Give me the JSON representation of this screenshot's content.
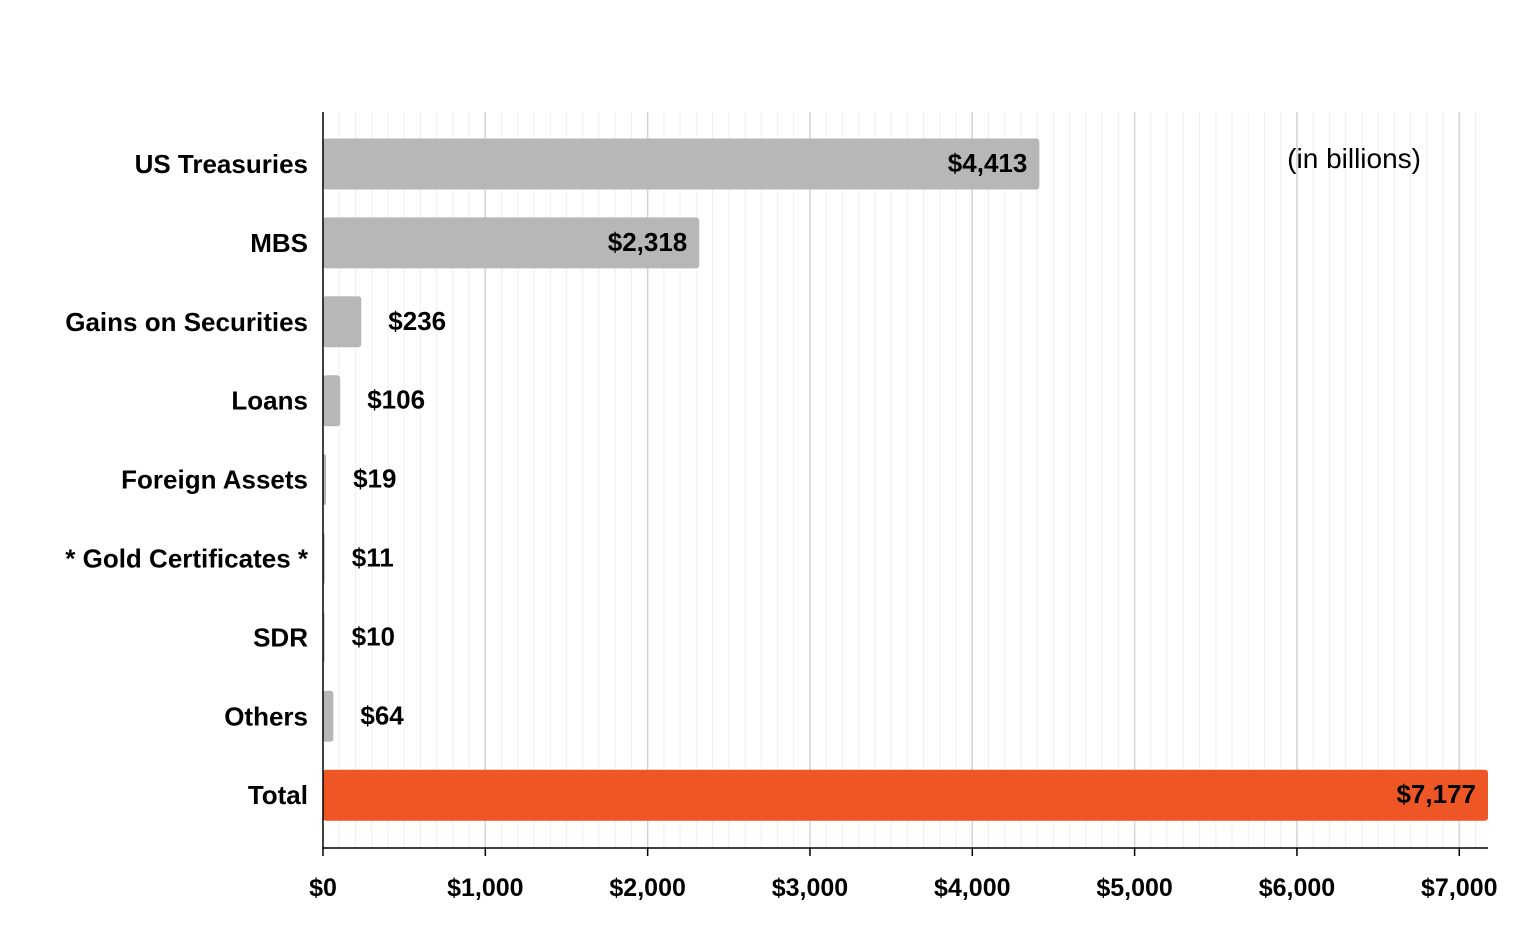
{
  "chart_data": {
    "type": "bar",
    "orientation": "horizontal",
    "title": "",
    "xlabel": "",
    "ylabel": "",
    "annotation": "(in billions)",
    "categories": [
      "US Treasuries",
      "MBS",
      "Gains on Securities",
      "Loans",
      "Foreign Assets",
      "* Gold Certificates *",
      "SDR",
      "Others",
      "Total"
    ],
    "values": [
      4413,
      2318,
      236,
      106,
      19,
      11,
      10,
      64,
      7177
    ],
    "value_labels": [
      "$4,413",
      "$2,318",
      "$236",
      "$106",
      "$19",
      "$11",
      "$10",
      "$64",
      "$7,177"
    ],
    "bar_colors": [
      "#b7b7b7",
      "#b7b7b7",
      "#b7b7b7",
      "#b7b7b7",
      "#b7b7b7",
      "#b7b7b7",
      "#b7b7b7",
      "#b7b7b7",
      "#ee5626"
    ],
    "xlim": [
      0,
      7177
    ],
    "x_ticks": [
      0,
      1000,
      2000,
      3000,
      4000,
      5000,
      6000,
      7000
    ],
    "x_tick_labels": [
      "$0",
      "$1,000",
      "$2,000",
      "$3,000",
      "$4,000",
      "$5,000",
      "$6,000",
      "$7,000"
    ],
    "grid": true,
    "minor_grid": true,
    "legend": "none"
  }
}
